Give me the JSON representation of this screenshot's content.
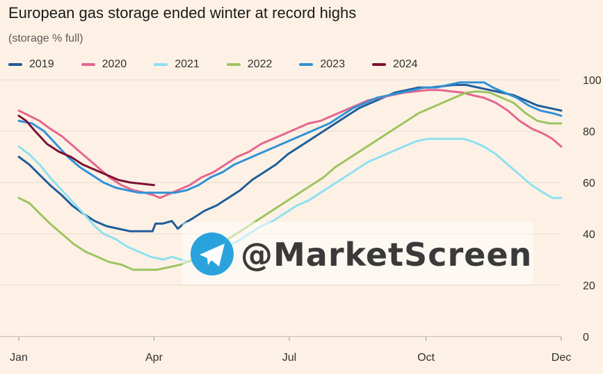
{
  "title": "European gas storage ended winter at record highs",
  "subtitle": "(storage % full)",
  "watermark": {
    "text": "@MarketScreen",
    "icon": "telegram-icon",
    "icon_color": "#2aa3dd",
    "text_color": "#3a3a3a"
  },
  "colors": {
    "background": "#fdf1e5",
    "grid": "#e6dcd1",
    "axis_text": "#33302e"
  },
  "chart_data": {
    "type": "line",
    "x_scale": "day-of-year",
    "xlim": [
      1,
      366
    ],
    "ylim": [
      0,
      100
    ],
    "y_ticks": [
      0,
      20,
      40,
      60,
      80,
      100
    ],
    "x_ticks": [
      {
        "label": "Jan",
        "day": 1
      },
      {
        "label": "Apr",
        "day": 92
      },
      {
        "label": "Jul",
        "day": 183
      },
      {
        "label": "Oct",
        "day": 275
      },
      {
        "label": "Dec",
        "day": 366
      }
    ],
    "grid": true,
    "y_axis_side": "right",
    "legend_position": "top",
    "series": [
      {
        "name": "2019",
        "color": "#1f5c99",
        "points": [
          [
            1,
            70
          ],
          [
            8,
            67
          ],
          [
            15,
            63
          ],
          [
            22,
            59
          ],
          [
            30,
            55
          ],
          [
            37,
            51
          ],
          [
            44,
            48
          ],
          [
            52,
            45
          ],
          [
            60,
            43
          ],
          [
            68,
            42
          ],
          [
            76,
            41
          ],
          [
            84,
            41
          ],
          [
            91,
            41
          ],
          [
            93,
            44
          ],
          [
            98,
            44
          ],
          [
            104,
            45
          ],
          [
            108,
            42
          ],
          [
            112,
            44
          ],
          [
            118,
            46
          ],
          [
            126,
            49
          ],
          [
            134,
            51
          ],
          [
            142,
            54
          ],
          [
            150,
            57
          ],
          [
            158,
            61
          ],
          [
            166,
            64
          ],
          [
            174,
            67
          ],
          [
            182,
            71
          ],
          [
            190,
            74
          ],
          [
            198,
            77
          ],
          [
            206,
            80
          ],
          [
            214,
            83
          ],
          [
            222,
            86
          ],
          [
            230,
            89
          ],
          [
            238,
            91
          ],
          [
            246,
            93
          ],
          [
            254,
            95
          ],
          [
            262,
            96
          ],
          [
            270,
            97
          ],
          [
            278,
            97
          ],
          [
            286,
            97.5
          ],
          [
            294,
            98
          ],
          [
            302,
            98
          ],
          [
            310,
            97
          ],
          [
            318,
            96
          ],
          [
            326,
            95
          ],
          [
            334,
            94
          ],
          [
            342,
            92
          ],
          [
            350,
            90
          ],
          [
            358,
            89
          ],
          [
            366,
            88
          ]
        ]
      },
      {
        "name": "2020",
        "color": "#e5658f",
        "points": [
          [
            1,
            88
          ],
          [
            8,
            86
          ],
          [
            15,
            84
          ],
          [
            22,
            81
          ],
          [
            30,
            78
          ],
          [
            38,
            74
          ],
          [
            46,
            70
          ],
          [
            54,
            66
          ],
          [
            62,
            62
          ],
          [
            70,
            59
          ],
          [
            78,
            57
          ],
          [
            86,
            56
          ],
          [
            92,
            55
          ],
          [
            96,
            54
          ],
          [
            100,
            55
          ],
          [
            108,
            57
          ],
          [
            116,
            59
          ],
          [
            124,
            62
          ],
          [
            132,
            64
          ],
          [
            140,
            67
          ],
          [
            148,
            70
          ],
          [
            156,
            72
          ],
          [
            164,
            75
          ],
          [
            172,
            77
          ],
          [
            180,
            79
          ],
          [
            188,
            81
          ],
          [
            196,
            83
          ],
          [
            204,
            84
          ],
          [
            212,
            86
          ],
          [
            220,
            88
          ],
          [
            228,
            90
          ],
          [
            236,
            92
          ],
          [
            244,
            93
          ],
          [
            252,
            94
          ],
          [
            260,
            95
          ],
          [
            268,
            95.5
          ],
          [
            276,
            96
          ],
          [
            284,
            96
          ],
          [
            292,
            95.5
          ],
          [
            300,
            95
          ],
          [
            306,
            94
          ],
          [
            314,
            93
          ],
          [
            322,
            91
          ],
          [
            330,
            88
          ],
          [
            338,
            84
          ],
          [
            346,
            81
          ],
          [
            354,
            79
          ],
          [
            360,
            77
          ],
          [
            366,
            74
          ]
        ]
      },
      {
        "name": "2021",
        "color": "#8ee0f0",
        "points": [
          [
            1,
            74
          ],
          [
            8,
            71
          ],
          [
            15,
            67
          ],
          [
            22,
            62
          ],
          [
            30,
            57
          ],
          [
            38,
            52
          ],
          [
            46,
            47
          ],
          [
            52,
            43
          ],
          [
            58,
            40
          ],
          [
            66,
            38
          ],
          [
            74,
            35
          ],
          [
            82,
            33
          ],
          [
            90,
            31
          ],
          [
            98,
            30
          ],
          [
            104,
            31
          ],
          [
            110,
            30
          ],
          [
            116,
            29
          ],
          [
            124,
            31
          ],
          [
            132,
            33
          ],
          [
            140,
            35
          ],
          [
            148,
            37
          ],
          [
            156,
            40
          ],
          [
            164,
            43
          ],
          [
            172,
            45
          ],
          [
            180,
            48
          ],
          [
            188,
            51
          ],
          [
            196,
            53
          ],
          [
            204,
            56
          ],
          [
            212,
            59
          ],
          [
            220,
            62
          ],
          [
            228,
            65
          ],
          [
            236,
            68
          ],
          [
            244,
            70
          ],
          [
            252,
            72
          ],
          [
            260,
            74
          ],
          [
            268,
            76
          ],
          [
            276,
            77
          ],
          [
            284,
            77
          ],
          [
            292,
            77
          ],
          [
            300,
            77
          ],
          [
            306,
            76
          ],
          [
            314,
            74
          ],
          [
            322,
            71
          ],
          [
            330,
            67
          ],
          [
            338,
            63
          ],
          [
            346,
            59
          ],
          [
            354,
            56
          ],
          [
            360,
            54
          ],
          [
            366,
            54
          ]
        ]
      },
      {
        "name": "2022",
        "color": "#9dc45f",
        "points": [
          [
            1,
            54
          ],
          [
            8,
            52
          ],
          [
            15,
            48
          ],
          [
            22,
            44
          ],
          [
            30,
            40
          ],
          [
            38,
            36
          ],
          [
            46,
            33
          ],
          [
            54,
            31
          ],
          [
            62,
            29
          ],
          [
            70,
            28
          ],
          [
            78,
            26
          ],
          [
            86,
            26
          ],
          [
            94,
            26
          ],
          [
            102,
            27
          ],
          [
            110,
            28
          ],
          [
            118,
            30
          ],
          [
            126,
            32
          ],
          [
            134,
            35
          ],
          [
            142,
            38
          ],
          [
            150,
            41
          ],
          [
            158,
            44
          ],
          [
            166,
            47
          ],
          [
            174,
            50
          ],
          [
            182,
            53
          ],
          [
            190,
            56
          ],
          [
            198,
            59
          ],
          [
            206,
            62
          ],
          [
            214,
            66
          ],
          [
            222,
            69
          ],
          [
            230,
            72
          ],
          [
            238,
            75
          ],
          [
            246,
            78
          ],
          [
            254,
            81
          ],
          [
            262,
            84
          ],
          [
            270,
            87
          ],
          [
            278,
            89
          ],
          [
            286,
            91
          ],
          [
            294,
            93
          ],
          [
            302,
            95
          ],
          [
            310,
            95.5
          ],
          [
            318,
            95
          ],
          [
            326,
            93
          ],
          [
            334,
            91
          ],
          [
            342,
            87
          ],
          [
            350,
            84
          ],
          [
            358,
            83
          ],
          [
            366,
            83
          ]
        ]
      },
      {
        "name": "2023",
        "color": "#3091d6",
        "points": [
          [
            1,
            84
          ],
          [
            10,
            83
          ],
          [
            18,
            80
          ],
          [
            26,
            75
          ],
          [
            34,
            70
          ],
          [
            42,
            66
          ],
          [
            50,
            63
          ],
          [
            58,
            60
          ],
          [
            66,
            58
          ],
          [
            74,
            57
          ],
          [
            82,
            56
          ],
          [
            90,
            56
          ],
          [
            98,
            56
          ],
          [
            106,
            56
          ],
          [
            114,
            57
          ],
          [
            122,
            59
          ],
          [
            130,
            62
          ],
          [
            138,
            64
          ],
          [
            146,
            67
          ],
          [
            154,
            69
          ],
          [
            162,
            71
          ],
          [
            170,
            73
          ],
          [
            178,
            75
          ],
          [
            186,
            77
          ],
          [
            194,
            79
          ],
          [
            202,
            81
          ],
          [
            210,
            83
          ],
          [
            218,
            86
          ],
          [
            226,
            89
          ],
          [
            234,
            91
          ],
          [
            242,
            93
          ],
          [
            250,
            94
          ],
          [
            258,
            95
          ],
          [
            266,
            96
          ],
          [
            274,
            97
          ],
          [
            282,
            97
          ],
          [
            290,
            98
          ],
          [
            298,
            99
          ],
          [
            306,
            99
          ],
          [
            314,
            99
          ],
          [
            320,
            97
          ],
          [
            328,
            95
          ],
          [
            336,
            93
          ],
          [
            344,
            90
          ],
          [
            352,
            88
          ],
          [
            360,
            87
          ],
          [
            366,
            86
          ]
        ]
      },
      {
        "name": "2024",
        "color": "#7d1034",
        "points": [
          [
            1,
            86
          ],
          [
            6,
            84
          ],
          [
            12,
            80
          ],
          [
            20,
            75
          ],
          [
            28,
            72
          ],
          [
            36,
            70
          ],
          [
            44,
            67
          ],
          [
            52,
            65
          ],
          [
            60,
            63
          ],
          [
            68,
            61
          ],
          [
            76,
            60
          ],
          [
            84,
            59.5
          ],
          [
            92,
            59
          ]
        ]
      }
    ]
  }
}
